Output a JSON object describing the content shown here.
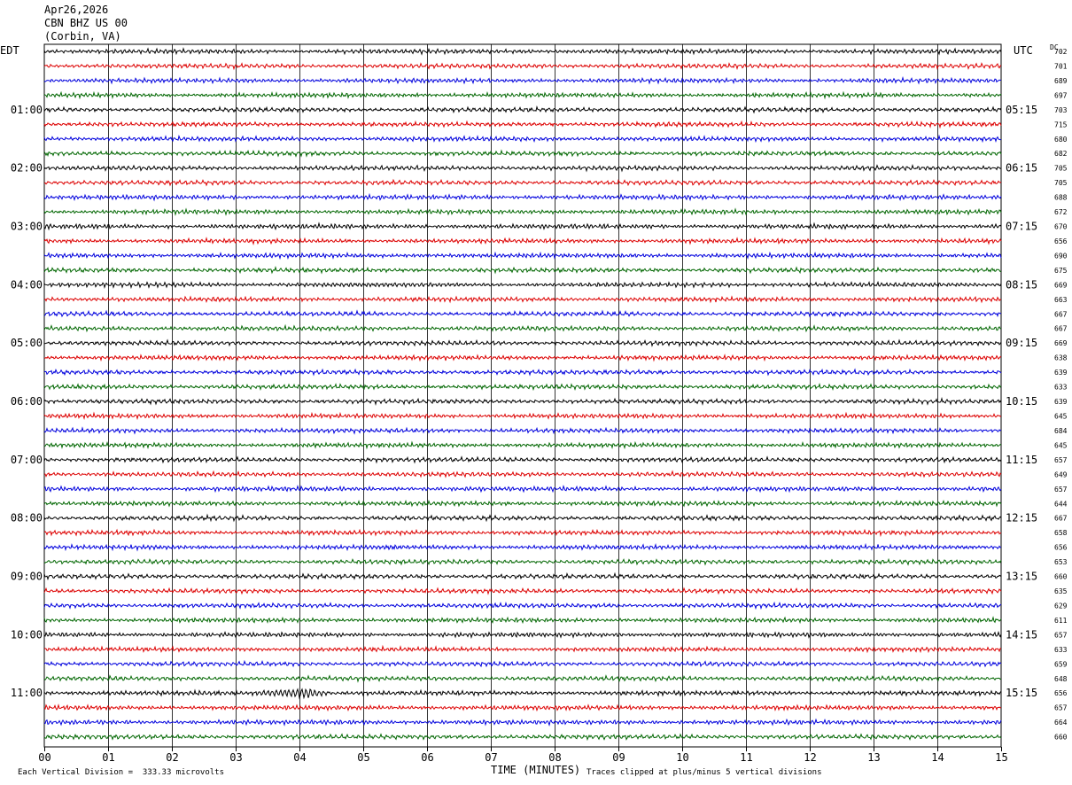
{
  "header": {
    "date": "Apr26,2026",
    "station": "CBN BHZ US 00",
    "location": "(Corbin, VA)"
  },
  "left_tz": "EDT",
  "right_tz": "UTC",
  "dc_label": "DC",
  "footer": {
    "scale_note": "Each Vertical Division =  333.33 microvolts",
    "xlabel": "TIME (MINUTES)",
    "clip_note": "Traces clipped at plus/minus 5 vertical divisions"
  },
  "colors": {
    "trace_cycle": [
      "#000000",
      "#dd0000",
      "#0000dd",
      "#006600"
    ],
    "grid": "#000000"
  },
  "chart_data": {
    "type": "line",
    "title": "",
    "xlabel": "TIME (MINUTES)",
    "xlim": [
      0,
      15
    ],
    "x_ticks": [
      "00",
      "01",
      "02",
      "03",
      "04",
      "05",
      "06",
      "07",
      "08",
      "09",
      "10",
      "11",
      "12",
      "13",
      "14",
      "15"
    ],
    "trace_minutes": 15,
    "num_traces": 48,
    "left_hour_labels": [
      "01:00",
      "02:00",
      "03:00",
      "04:00",
      "05:00",
      "06:00",
      "07:00",
      "08:00",
      "09:00",
      "10:00",
      "11:00"
    ],
    "right_hour_labels": [
      "05:15",
      "06:15",
      "07:15",
      "08:15",
      "09:15",
      "10:15",
      "11:15",
      "12:15",
      "13:15",
      "14:15",
      "15:15"
    ],
    "hour_label_trace_index": [
      4,
      8,
      12,
      16,
      20,
      24,
      28,
      32,
      36,
      40,
      44
    ],
    "dc_offsets": [
      "702",
      "701",
      "689",
      "697",
      "703",
      "715",
      "680",
      "682",
      "705",
      "705",
      "688",
      "672",
      "670",
      "656",
      "690",
      "675",
      "669",
      "663",
      "667",
      "667",
      "669",
      "638",
      "639",
      "633",
      "639",
      "645",
      "684",
      "645",
      "657",
      "649",
      "657",
      "644",
      "667",
      "658",
      "656",
      "653",
      "660",
      "635",
      "629",
      "611",
      "657",
      "633",
      "659",
      "648",
      "656",
      "657",
      "664",
      "660"
    ],
    "events": [
      {
        "trace": 44,
        "minute_start": 3.3,
        "minute_end": 4.5,
        "amplitude_div": 1.6
      }
    ]
  }
}
